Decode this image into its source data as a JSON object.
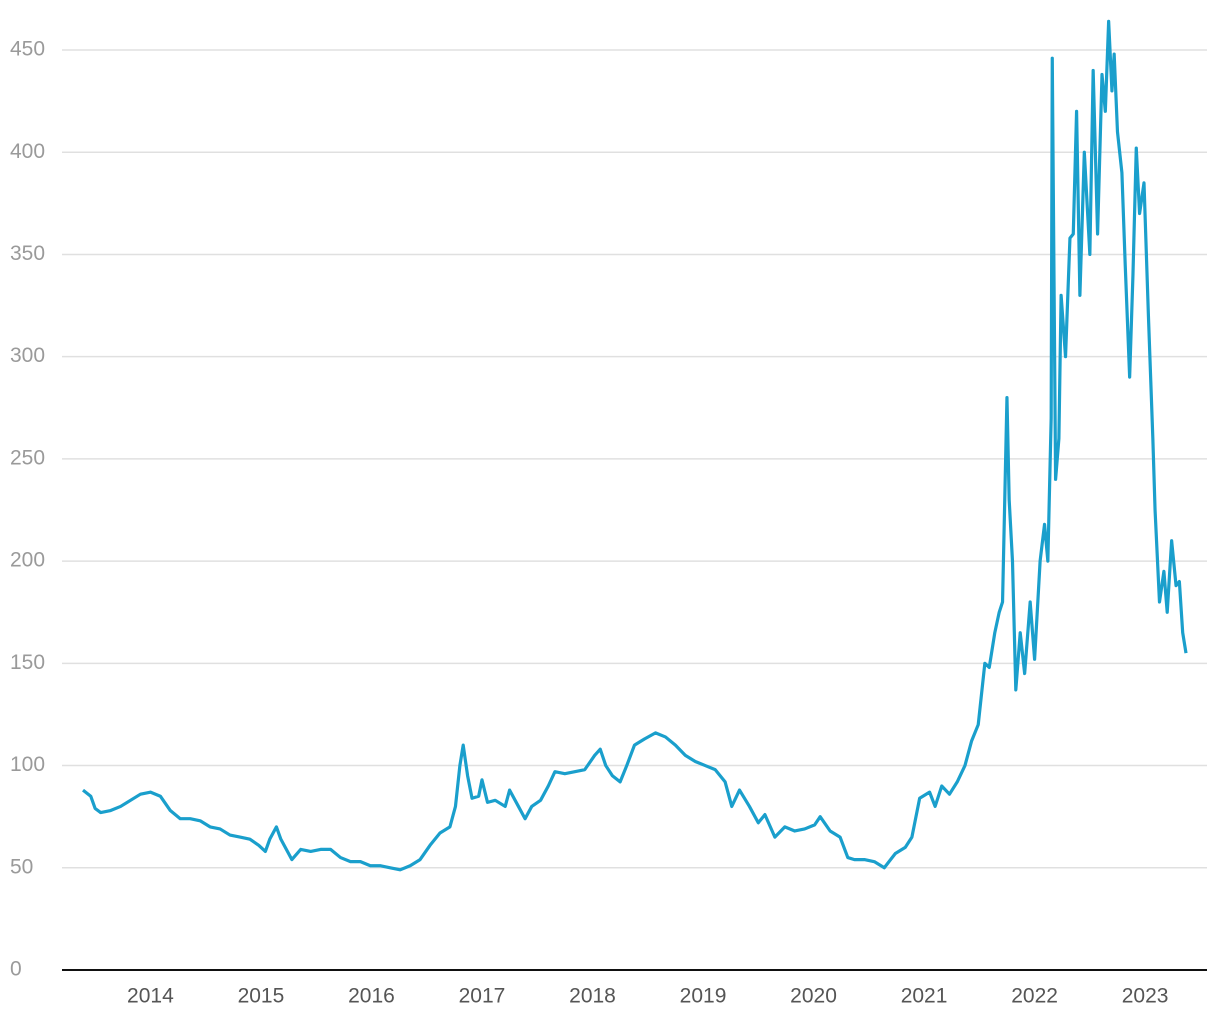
{
  "chart_data": {
    "type": "line",
    "color": "#1a9fcc",
    "grid": true,
    "xlim": [
      2013.2,
      2023.56
    ],
    "ylim": [
      0,
      470
    ],
    "xticks": [
      2014,
      2015,
      2016,
      2017,
      2018,
      2019,
      2020,
      2021,
      2022,
      2023
    ],
    "yticks": [
      0,
      50,
      100,
      150,
      200,
      250,
      300,
      350,
      400,
      450
    ],
    "x": [
      2013.39,
      2013.46,
      2013.5,
      2013.55,
      2013.64,
      2013.73,
      2013.82,
      2013.91,
      2014.0,
      2014.09,
      2014.18,
      2014.27,
      2014.36,
      2014.45,
      2014.54,
      2014.63,
      2014.72,
      2014.81,
      2014.9,
      2014.98,
      2015.04,
      2015.08,
      2015.14,
      2015.18,
      2015.25,
      2015.28,
      2015.36,
      2015.45,
      2015.54,
      2015.63,
      2015.72,
      2015.81,
      2015.9,
      2015.99,
      2016.08,
      2016.17,
      2016.26,
      2016.35,
      2016.44,
      2016.53,
      2016.62,
      2016.71,
      2016.76,
      2016.8,
      2016.83,
      2016.87,
      2016.91,
      2016.97,
      2017.0,
      2017.05,
      2017.12,
      2017.21,
      2017.25,
      2017.33,
      2017.39,
      2017.45,
      2017.53,
      2017.6,
      2017.66,
      2017.75,
      2017.84,
      2017.93,
      2018.02,
      2018.07,
      2018.12,
      2018.18,
      2018.25,
      2018.31,
      2018.38,
      2018.47,
      2018.57,
      2018.66,
      2018.75,
      2018.84,
      2018.93,
      2019.02,
      2019.11,
      2019.2,
      2019.26,
      2019.33,
      2019.42,
      2019.5,
      2019.56,
      2019.65,
      2019.74,
      2019.83,
      2019.92,
      2020.01,
      2020.06,
      2020.15,
      2020.24,
      2020.31,
      2020.37,
      2020.46,
      2020.55,
      2020.64,
      2020.74,
      2020.83,
      2020.89,
      2020.96,
      2021.05,
      2021.1,
      2021.16,
      2021.23,
      2021.3,
      2021.37,
      2021.43,
      2021.49,
      2021.55,
      2021.59,
      2021.64,
      2021.68,
      2021.71,
      2021.75,
      2021.77,
      2021.8,
      2021.83,
      2021.87,
      2021.91,
      2021.96,
      2022.0,
      2022.05,
      2022.09,
      2022.12,
      2022.15,
      2022.16,
      2022.19,
      2022.22,
      2022.24,
      2022.28,
      2022.32,
      2022.35,
      2022.38,
      2022.41,
      2022.45,
      2022.5,
      2022.53,
      2022.57,
      2022.61,
      2022.64,
      2022.67,
      2022.7,
      2022.72,
      2022.75,
      2022.79,
      2022.82,
      2022.86,
      2022.89,
      2022.92,
      2022.95,
      2022.99,
      2023.03,
      2023.07,
      2023.09,
      2023.13,
      2023.17,
      2023.2,
      2023.24,
      2023.28,
      2023.31,
      2023.34,
      2023.37
    ],
    "values": [
      88,
      85,
      79,
      77,
      78,
      80,
      83,
      86,
      87,
      85,
      78,
      74,
      74,
      73,
      70,
      69,
      66,
      65,
      64,
      61,
      58,
      64,
      70,
      64,
      57,
      54,
      59,
      58,
      59,
      59,
      55,
      53,
      53,
      51,
      51,
      50,
      49,
      51,
      54,
      61,
      67,
      70,
      80,
      100,
      110,
      95,
      84,
      85,
      93,
      82,
      83,
      80,
      88,
      80,
      74,
      80,
      83,
      90,
      97,
      96,
      97,
      98,
      105,
      108,
      100,
      95,
      92,
      100,
      110,
      113,
      116,
      114,
      110,
      105,
      102,
      100,
      98,
      92,
      80,
      88,
      80,
      72,
      76,
      65,
      70,
      68,
      69,
      71,
      75,
      68,
      65,
      55,
      54,
      54,
      53,
      50,
      57,
      60,
      65,
      84,
      87,
      80,
      90,
      86,
      92,
      100,
      112,
      120,
      150,
      148,
      165,
      175,
      180,
      280,
      230,
      200,
      137,
      165,
      145,
      180,
      152,
      200,
      218,
      200,
      270,
      446,
      240,
      260,
      330,
      300,
      358,
      360,
      420,
      330,
      400,
      350,
      440,
      360,
      438,
      420,
      464,
      430,
      448,
      410,
      390,
      345,
      290,
      340,
      402,
      370,
      385,
      320,
      260,
      225,
      180,
      195,
      175,
      210,
      188,
      190,
      165,
      155
    ]
  }
}
